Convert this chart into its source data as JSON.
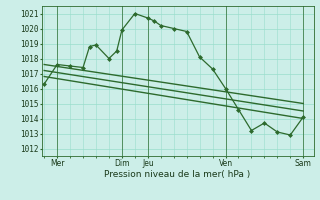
{
  "bg_color": "#cceee8",
  "grid_color": "#99ddcc",
  "line_color": "#2d6a2d",
  "marker_color": "#2d6a2d",
  "ylabel_values": [
    1012,
    1013,
    1014,
    1015,
    1016,
    1017,
    1018,
    1019,
    1020,
    1021
  ],
  "ylim": [
    1011.5,
    1021.5
  ],
  "xlabel": "Pression niveau de la mer( hPa )",
  "xtick_labels": [
    "Mer",
    "Dim",
    "Jeu",
    "Ven",
    "Sam"
  ],
  "xtick_positions": [
    0.5,
    3.0,
    4.0,
    7.0,
    10.0
  ],
  "vline_positions": [
    0.5,
    3.0,
    4.0,
    7.0,
    10.0
  ],
  "series1_x": [
    0,
    0.5,
    1.0,
    1.5,
    1.75,
    2.0,
    2.5,
    2.8,
    3.0,
    3.5,
    4.0,
    4.25,
    4.5,
    5.0,
    5.5,
    6.0,
    6.5,
    7.0,
    7.5,
    8.0,
    8.5,
    9.0,
    9.5,
    10.0
  ],
  "series1_y": [
    1016.3,
    1017.6,
    1017.5,
    1017.4,
    1018.8,
    1018.9,
    1018.0,
    1018.5,
    1019.9,
    1021.0,
    1020.7,
    1020.5,
    1020.2,
    1020.0,
    1019.8,
    1018.1,
    1017.3,
    1016.0,
    1014.6,
    1013.2,
    1013.7,
    1013.1,
    1012.9,
    1014.1
  ],
  "series2_x": [
    0.0,
    10.0
  ],
  "series2_y": [
    1017.6,
    1015.0
  ],
  "series3_x": [
    0.0,
    10.0
  ],
  "series3_y": [
    1017.2,
    1014.5
  ],
  "series4_x": [
    0.0,
    10.0
  ],
  "series4_y": [
    1016.8,
    1014.0
  ],
  "xlim": [
    -0.1,
    10.4
  ]
}
